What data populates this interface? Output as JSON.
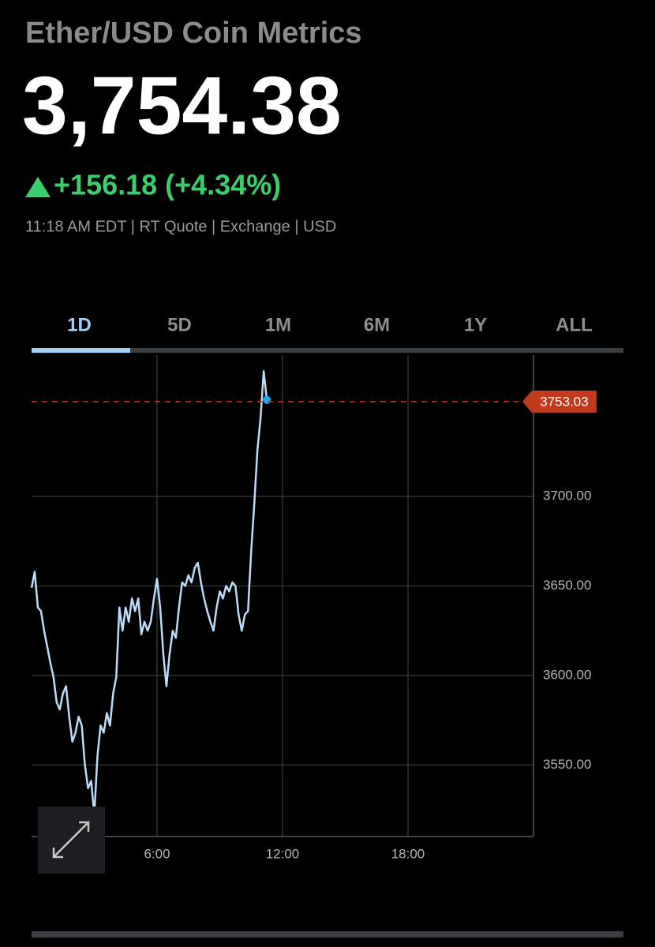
{
  "header": {
    "title": "Ether/USD Coin Metrics",
    "price": "3,754.38",
    "change": "+156.18 (+4.34%)",
    "meta": "11:18 AM EDT | RT Quote | Exchange | USD"
  },
  "tabs": {
    "items": [
      "1D",
      "5D",
      "1M",
      "6M",
      "1Y",
      "ALL"
    ],
    "active": 0
  },
  "chart_data": {
    "type": "line",
    "color": "#bcdcfb",
    "x": [
      0,
      0.15,
      0.3,
      0.45,
      0.6,
      0.75,
      0.9,
      1.05,
      1.2,
      1.35,
      1.5,
      1.65,
      1.8,
      1.95,
      2.1,
      2.25,
      2.4,
      2.55,
      2.7,
      2.85,
      3,
      3.15,
      3.3,
      3.45,
      3.6,
      3.75,
      3.9,
      4.05,
      4.2,
      4.35,
      4.5,
      4.65,
      4.8,
      4.95,
      5.1,
      5.25,
      5.4,
      5.55,
      5.7,
      5.85,
      6,
      6.15,
      6.3,
      6.45,
      6.6,
      6.75,
      6.9,
      7.05,
      7.2,
      7.35,
      7.5,
      7.65,
      7.8,
      7.95,
      8.1,
      8.25,
      8.4,
      8.55,
      8.7,
      8.85,
      9,
      9.15,
      9.3,
      9.45,
      9.6,
      9.75,
      9.9,
      10.05,
      10.2,
      10.35,
      10.5,
      10.65,
      10.8,
      10.95,
      11.1,
      11.25
    ],
    "values": [
      3649,
      3658,
      3638,
      3636,
      3625,
      3616,
      3607,
      3599,
      3585,
      3581,
      3590,
      3594,
      3577,
      3563,
      3568,
      3577,
      3572,
      3550,
      3537,
      3541,
      3522,
      3555,
      3572,
      3568,
      3579,
      3572,
      3590,
      3599,
      3638,
      3625,
      3638,
      3630,
      3643,
      3636,
      3643,
      3623,
      3630,
      3625,
      3630,
      3643,
      3654,
      3638,
      3612,
      3594,
      3612,
      3625,
      3621,
      3638,
      3652,
      3650,
      3656,
      3652,
      3660,
      3663,
      3652,
      3643,
      3636,
      3630,
      3625,
      3638,
      3647,
      3643,
      3650,
      3647,
      3652,
      3650,
      3634,
      3625,
      3634,
      3636,
      3669,
      3696,
      3726,
      3744,
      3770,
      3754
    ],
    "xlim": [
      0,
      24
    ],
    "xticks": [
      {
        "value": 6,
        "label": "6:00"
      },
      {
        "value": 12,
        "label": "12:00"
      },
      {
        "value": 18,
        "label": "18:00"
      }
    ],
    "ylim": [
      3510,
      3779
    ],
    "yticks": [
      {
        "value": 3550,
        "label": "3550.00"
      },
      {
        "value": 3600,
        "label": "3600.00"
      },
      {
        "value": 3650,
        "label": "3650.00"
      },
      {
        "value": 3700,
        "label": "3700.00"
      }
    ],
    "grid": true,
    "reference_line": 3753.03,
    "reference_color": "#c23a1c"
  }
}
